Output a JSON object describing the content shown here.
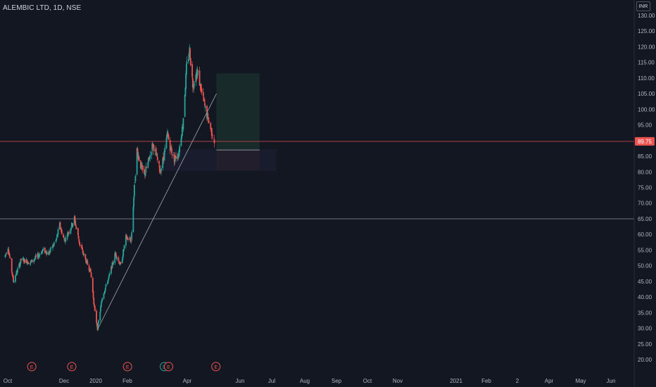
{
  "header": {
    "symbol": "ALEMBIC LTD, 1D, NSE",
    "currency": "INR"
  },
  "colors": {
    "background": "#131722",
    "up": "#26a69a",
    "down": "#ef5350",
    "axis_text": "#b2b5be",
    "last_price_badge": "#ef5350",
    "support_line": "#787b86",
    "trendline": "#9598a1",
    "target_zone": "#1e3a2f",
    "stop_zone": "#3a1e26",
    "event_icon": "#ef5350",
    "dividend_icon": "#26a69a"
  },
  "chart_data": {
    "type": "candlestick",
    "symbol": "ALEMBIC LTD",
    "interval": "1D",
    "exchange": "NSE",
    "currency": "INR",
    "x_labels": [
      "Oct",
      "Dec",
      "2020",
      "Feb",
      "Apr",
      "Jun",
      "Jul",
      "Aug",
      "Sep",
      "Oct",
      "Nov",
      "2021",
      "Feb",
      "2",
      "Apr",
      "May",
      "Jun"
    ],
    "y_ticks": [
      20,
      25,
      30,
      35,
      40,
      45,
      50,
      55,
      60,
      65,
      70,
      75,
      80,
      85,
      90,
      95,
      100,
      105,
      110,
      115,
      120,
      125,
      130
    ],
    "ylim": [
      17.5,
      132.5
    ],
    "last_price": 89.75,
    "last_price_label": "89.75",
    "price_path": [
      [
        "2019-10-01",
        53
      ],
      [
        "2019-10-07",
        56
      ],
      [
        "2019-10-17",
        45
      ],
      [
        "2019-11-01",
        52
      ],
      [
        "2019-11-18",
        51
      ],
      [
        "2019-12-02",
        53
      ],
      [
        "2019-12-12",
        55
      ],
      [
        "2019-12-23",
        54
      ],
      [
        "2020-01-06",
        58
      ],
      [
        "2020-01-13",
        63
      ],
      [
        "2020-01-22",
        58
      ],
      [
        "2020-02-05",
        63
      ],
      [
        "2020-02-10",
        65
      ],
      [
        "2020-02-20",
        57
      ],
      [
        "2020-03-02",
        52
      ],
      [
        "2020-03-12",
        48
      ],
      [
        "2020-03-20",
        35
      ],
      [
        "2020-03-25",
        30
      ],
      [
        "2020-04-03",
        40
      ],
      [
        "2020-04-15",
        46
      ],
      [
        "2020-04-28",
        54
      ],
      [
        "2020-05-08",
        50
      ],
      [
        "2020-05-18",
        59
      ],
      [
        "2020-05-28",
        58
      ],
      [
        "2020-06-03",
        75
      ],
      [
        "2020-06-08",
        87
      ],
      [
        "2020-06-15",
        82
      ],
      [
        "2020-06-22",
        79
      ],
      [
        "2020-07-01",
        84
      ],
      [
        "2020-07-08",
        89
      ],
      [
        "2020-07-15",
        85
      ],
      [
        "2020-07-22",
        80
      ],
      [
        "2020-07-29",
        85
      ],
      [
        "2020-08-05",
        92
      ],
      [
        "2020-08-10",
        88
      ],
      [
        "2020-08-18",
        84
      ],
      [
        "2020-08-26",
        86
      ],
      [
        "2020-09-03",
        95
      ],
      [
        "2020-09-10",
        113
      ],
      [
        "2020-09-16",
        119
      ],
      [
        "2020-09-22",
        108
      ],
      [
        "2020-10-01",
        112
      ],
      [
        "2020-10-08",
        106
      ],
      [
        "2020-10-16",
        100
      ],
      [
        "2020-10-26",
        94
      ],
      [
        "2020-11-02",
        89.75
      ]
    ],
    "horizontal_lines": [
      {
        "price": 89.75,
        "style": "last-price"
      },
      {
        "price": 65,
        "style": "support"
      }
    ],
    "trendline": {
      "from": [
        "2020-03-26",
        30
      ],
      "to": [
        "2020-11-06",
        105
      ]
    },
    "position_tool": {
      "entry": 87,
      "target": 111.5,
      "stop": 80.5,
      "from": "2020-11-06",
      "to": "2021-01-27"
    },
    "event_markers": [
      {
        "date": "2019-11-21",
        "label": "E"
      },
      {
        "date": "2020-02-05",
        "label": "E"
      },
      {
        "date": "2020-05-21",
        "label": "E"
      },
      {
        "date": "2020-07-30",
        "label": "D"
      },
      {
        "date": "2020-08-07",
        "label": "E"
      },
      {
        "date": "2020-11-05",
        "label": "E"
      }
    ]
  }
}
